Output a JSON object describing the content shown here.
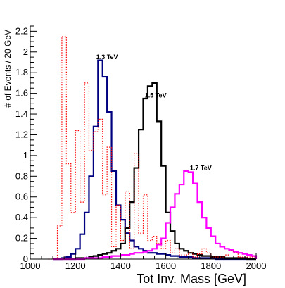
{
  "chart_data": {
    "type": "line",
    "title": "",
    "xlabel": "Tot Inv. Mass [GeV]",
    "ylabel": "# of Events / 20 GeV",
    "xlim": [
      1000,
      2000
    ],
    "ylim": [
      0,
      2.25
    ],
    "x_ticks": [
      "1000",
      "1200",
      "1400",
      "1600",
      "1800",
      "2000"
    ],
    "y_ticks": [
      "0",
      "0.2",
      "0.4",
      "0.6",
      "0.8",
      "1",
      "1.2",
      "1.4",
      "1.6",
      "1.8",
      "2",
      "2.2"
    ],
    "bin_width": 20,
    "grid": false,
    "legend": "none",
    "annotations": [
      {
        "text": "1.3 TeV",
        "x": 1340,
        "y": 1.93
      },
      {
        "text": "1.5 TeV",
        "x": 1555,
        "y": 1.56
      },
      {
        "text": "1.7 TeV",
        "x": 1755,
        "y": 0.86
      }
    ],
    "series": [
      {
        "color": "#000080",
        "style": "solid",
        "bin_edges_start": 1100,
        "values": [
          0.0,
          0.0,
          0.01,
          0.02,
          0.05,
          0.1,
          0.24,
          0.45,
          0.8,
          1.28,
          1.92,
          1.76,
          1.42,
          0.85,
          0.52,
          0.38,
          0.25,
          0.18,
          0.12,
          0.1,
          0.08,
          0.06,
          0.06,
          0.05,
          0.05,
          0.04,
          0.03,
          0.03,
          0.02,
          0.02,
          0.02,
          0.01,
          0.01,
          0.01,
          0.01,
          0.01,
          0.0,
          0.0,
          0.0,
          0.0,
          0.0,
          0.0,
          0.0,
          0.0,
          0.0
        ]
      },
      {
        "color": "#000000",
        "style": "solid",
        "bin_edges_start": 1100,
        "values": [
          0.0,
          0.0,
          0.0,
          0.0,
          0.0,
          0.01,
          0.01,
          0.01,
          0.02,
          0.03,
          0.04,
          0.05,
          0.06,
          0.08,
          0.1,
          0.15,
          0.3,
          0.55,
          0.88,
          1.25,
          1.55,
          1.67,
          1.7,
          1.33,
          0.9,
          0.45,
          0.27,
          0.15,
          0.1,
          0.08,
          0.06,
          0.05,
          0.04,
          0.03,
          0.03,
          0.02,
          0.02,
          0.02,
          0.01,
          0.01,
          0.01,
          0.01,
          0.01,
          0.0,
          0.0
        ]
      },
      {
        "color": "#ff00ff",
        "style": "solid",
        "bin_edges_start": 1100,
        "values": [
          0.0,
          0.0,
          0.0,
          0.0,
          0.0,
          0.0,
          0.0,
          0.01,
          0.01,
          0.01,
          0.01,
          0.02,
          0.02,
          0.03,
          0.03,
          0.04,
          0.04,
          0.05,
          0.06,
          0.06,
          0.07,
          0.08,
          0.1,
          0.14,
          0.2,
          0.35,
          0.5,
          0.63,
          0.72,
          0.85,
          0.84,
          0.73,
          0.55,
          0.4,
          0.3,
          0.22,
          0.15,
          0.12,
          0.1,
          0.09,
          0.07,
          0.06,
          0.05,
          0.04,
          0.03
        ]
      },
      {
        "color": "#ff0000",
        "style": "dotted",
        "bin_edges_start": 1080,
        "values": [
          0.0,
          0.0,
          0.32,
          2.15,
          0.92,
          0.45,
          1.24,
          0.55,
          1.7,
          1.05,
          1.23,
          1.35,
          0.62,
          1.08,
          0.12,
          0.52,
          0.18,
          0.65,
          0.1,
          1.02,
          0.25,
          0.62,
          0.18,
          0.22,
          0.15,
          0.1,
          0.18,
          0.06,
          0.1,
          0.04,
          0.04,
          0.06,
          0.02,
          0.05,
          0.1,
          0.06,
          0.02,
          0.02,
          0.02,
          0.04,
          0.08,
          0.06,
          0.02,
          0.02,
          0.02,
          0.02
        ]
      }
    ]
  }
}
